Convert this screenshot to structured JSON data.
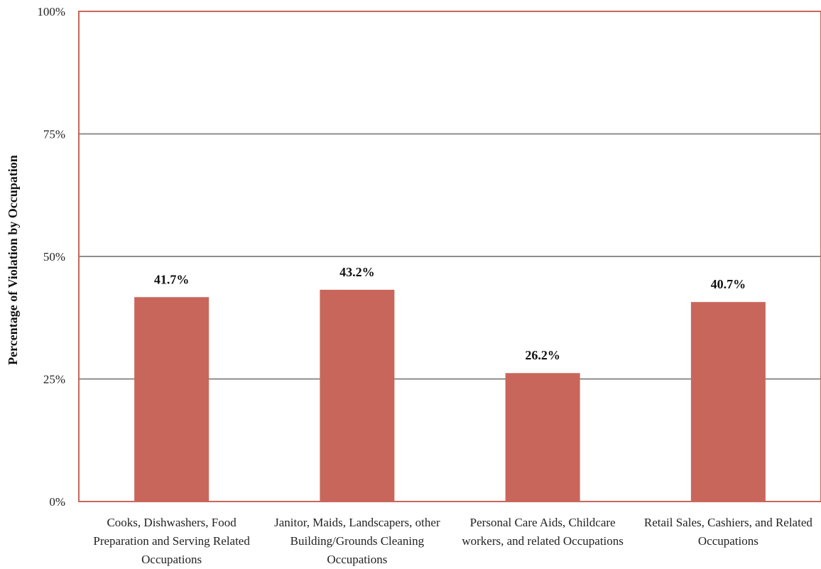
{
  "chart_data": {
    "type": "bar",
    "title": "",
    "xlabel": "",
    "ylabel": "Percentage of Violation by Occupation",
    "categories": [
      "Cooks, Dishwashers, Food Preparation and Serving Related Occupations",
      "Janitor, Maids, Landscapers, other Building/Grounds Cleaning Occupations",
      "Personal Care Aids, Childcare workers, and related Occupations",
      "Retail Sales, Cashiers, and Related Occupations"
    ],
    "values": [
      41.7,
      43.2,
      26.2,
      40.7
    ],
    "data_labels": [
      "41.7%",
      "43.2%",
      "26.2%",
      "40.7%"
    ],
    "ylim": [
      0,
      100
    ],
    "yticks": [
      0,
      25,
      50,
      75,
      100
    ],
    "ytick_labels": [
      "0%",
      "25%",
      "50%",
      "75%",
      "100%"
    ],
    "grid": true,
    "legend": "none",
    "colors": {
      "bar": "#c9665b",
      "border": "#c9665b",
      "grid": "#8c8c8c"
    }
  }
}
